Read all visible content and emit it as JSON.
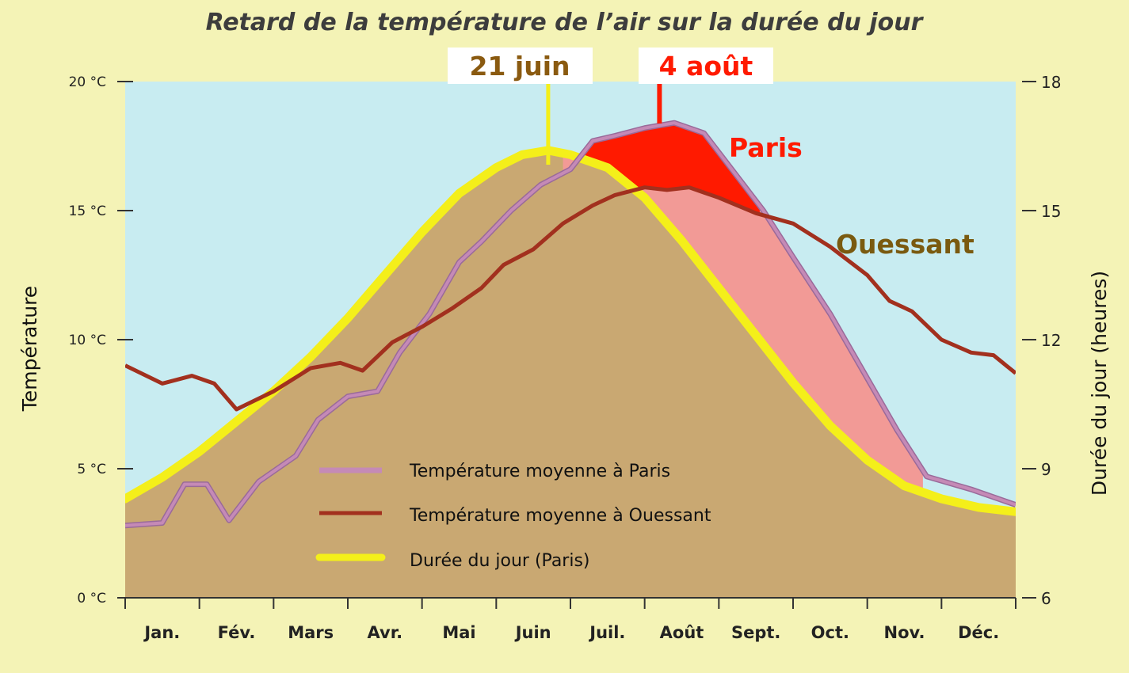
{
  "title": "Retard de la température de l’air sur la durée du jour",
  "colors": {
    "background": "#f4f3b6",
    "sky": "#c8ecf1",
    "daylight_fill": "#c9a872",
    "paris_line": "#c58ab6",
    "ouessant_line": "#a2301e",
    "daylight_line": "#f4ef1a",
    "paris_lag_fill": "#f29a96",
    "paris_peak_fill": "#ff1a00",
    "annotation_juin": "#8a5a10",
    "annotation_aout": "#ff1a00",
    "ouessant_label": "#7a5a10"
  },
  "chart_data": {
    "type": "line",
    "title": "Retard de la température de l’air sur la durée du jour",
    "x_unit": "mois",
    "x_range": [
      0,
      12
    ],
    "months": [
      "Jan.",
      "Fév.",
      "Mars",
      "Avr.",
      "Mai",
      "Juin",
      "Juil.",
      "Août",
      "Sept.",
      "Oct.",
      "Nov.",
      "Déc."
    ],
    "left_axis": {
      "label": "Température",
      "range": [
        0,
        20
      ],
      "ticks": [
        0,
        5,
        10,
        15,
        20
      ],
      "tick_labels": [
        "0 °C",
        "5 °C",
        "10 °C",
        "15 °C",
        "20 °C"
      ]
    },
    "right_axis": {
      "label": "Durée du jour (heures)",
      "range": [
        6,
        18
      ],
      "ticks": [
        6,
        9,
        12,
        15,
        18
      ],
      "tick_labels": [
        "6",
        "9",
        "12",
        "15",
        "18"
      ]
    },
    "series": [
      {
        "name": "Température moyenne à Paris",
        "axis": "left",
        "x": [
          0,
          0.5,
          0.8,
          1.1,
          1.4,
          1.8,
          2.3,
          2.6,
          3.0,
          3.4,
          3.7,
          4.1,
          4.5,
          4.8,
          5.2,
          5.6,
          6.0,
          6.3,
          6.6,
          7.0,
          7.4,
          7.8,
          8.2,
          8.6,
          9.0,
          9.5,
          9.9,
          10.4,
          10.8,
          11.4,
          12.0
        ],
        "values": [
          2.8,
          2.9,
          4.4,
          4.4,
          3.0,
          4.5,
          5.5,
          6.9,
          7.8,
          8.0,
          9.5,
          11.0,
          13.0,
          13.8,
          15.0,
          16.0,
          16.6,
          17.7,
          17.9,
          18.2,
          18.4,
          18.0,
          16.5,
          15.0,
          13.2,
          11.0,
          9.0,
          6.5,
          4.7,
          4.2,
          3.6
        ]
      },
      {
        "name": "Température moyenne à Ouessant",
        "axis": "left",
        "x": [
          0,
          0.5,
          0.9,
          1.2,
          1.5,
          2.0,
          2.5,
          2.9,
          3.2,
          3.6,
          4.0,
          4.4,
          4.8,
          5.1,
          5.5,
          5.9,
          6.3,
          6.6,
          7.0,
          7.3,
          7.6,
          8.0,
          8.5,
          9.0,
          9.5,
          10.0,
          10.3,
          10.6,
          11.0,
          11.4,
          11.7,
          12.0
        ],
        "values": [
          9.0,
          8.3,
          8.6,
          8.3,
          7.3,
          8.0,
          8.9,
          9.1,
          8.8,
          9.9,
          10.5,
          11.2,
          12.0,
          12.9,
          13.5,
          14.5,
          15.2,
          15.6,
          15.9,
          15.8,
          15.9,
          15.5,
          14.9,
          14.5,
          13.6,
          12.5,
          11.5,
          11.1,
          10.0,
          9.5,
          9.4,
          8.7
        ]
      },
      {
        "name": "Durée du jour (Paris)",
        "axis": "right",
        "x": [
          0,
          0.5,
          1.0,
          1.5,
          2.0,
          2.5,
          3.0,
          3.5,
          4.0,
          4.5,
          5.0,
          5.35,
          5.7,
          6.0,
          6.5,
          7.0,
          7.5,
          8.0,
          8.5,
          9.0,
          9.5,
          10.0,
          10.5,
          11.0,
          11.5,
          12.0
        ],
        "values": [
          8.3,
          8.8,
          9.4,
          10.1,
          10.8,
          11.6,
          12.5,
          13.5,
          14.5,
          15.4,
          16.0,
          16.3,
          16.4,
          16.3,
          16.0,
          15.3,
          14.3,
          13.2,
          12.1,
          11.0,
          10.0,
          9.2,
          8.6,
          8.3,
          8.1,
          8.0
        ]
      }
    ],
    "annotations": [
      {
        "text": "21 juin",
        "x": 5.7
      },
      {
        "text": "4 août",
        "x": 7.2
      },
      {
        "text": "Paris"
      },
      {
        "text": "Ouessant"
      }
    ],
    "legend": {
      "placement": "bottom-center",
      "items": [
        "Température moyenne à Paris",
        "Température moyenne à Ouessant",
        "Durée du jour (Paris)"
      ]
    }
  }
}
